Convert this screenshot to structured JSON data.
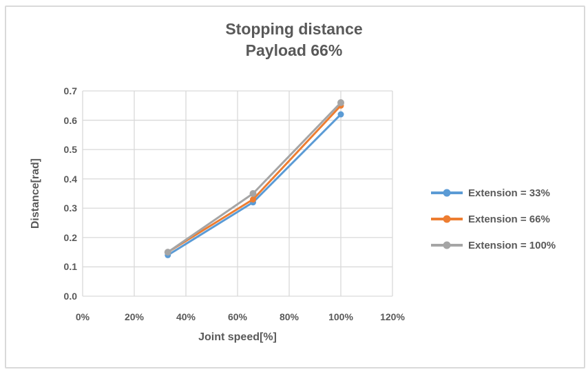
{
  "chart": {
    "title_line1": "Stopping distance",
    "title_line2": "Payload 66%",
    "x_axis": {
      "title": "Joint speed[%]",
      "tick_labels": [
        "0%",
        "20%",
        "40%",
        "60%",
        "80%",
        "100%",
        "120%"
      ],
      "tick_values": [
        0,
        20,
        40,
        60,
        80,
        100,
        120
      ]
    },
    "y_axis": {
      "title": "Distance[rad]",
      "tick_labels": [
        "0.0",
        "0.1",
        "0.2",
        "0.3",
        "0.4",
        "0.5",
        "0.6",
        "0.7"
      ],
      "tick_values": [
        0,
        0.1,
        0.2,
        0.3,
        0.4,
        0.5,
        0.6,
        0.7
      ]
    },
    "colors": {
      "text": "#595959",
      "gridline": "#d9d9d9",
      "frame_border": "#d9d9d9",
      "background": "#ffffff",
      "series_blue": "#5B9BD5",
      "series_orange": "#ED7D31",
      "series_gray": "#A5A5A5"
    }
  },
  "chart_data": {
    "type": "line",
    "title": "Stopping distance Payload 66%",
    "xlabel": "Joint speed[%]",
    "ylabel": "Distance[rad]",
    "x": [
      33,
      66,
      100
    ],
    "series": [
      {
        "name": "Extension = 33%",
        "color": "#5B9BD5",
        "marker": "circle",
        "marker_radius": 4.5,
        "values": [
          0.14,
          0.32,
          0.62
        ]
      },
      {
        "name": "Extension = 66%",
        "color": "#ED7D31",
        "marker": "circle",
        "marker_radius": 4.5,
        "values": [
          0.15,
          0.33,
          0.65
        ]
      },
      {
        "name": "Extension = 100%",
        "color": "#A5A5A5",
        "marker": "circle",
        "marker_radius": 5,
        "values": [
          0.15,
          0.35,
          0.66
        ]
      }
    ],
    "xlim": [
      0,
      120
    ],
    "ylim": [
      0,
      0.7
    ],
    "x_tick_step": 20,
    "y_tick_step": 0.1,
    "grid": true,
    "legend_position": "right"
  }
}
